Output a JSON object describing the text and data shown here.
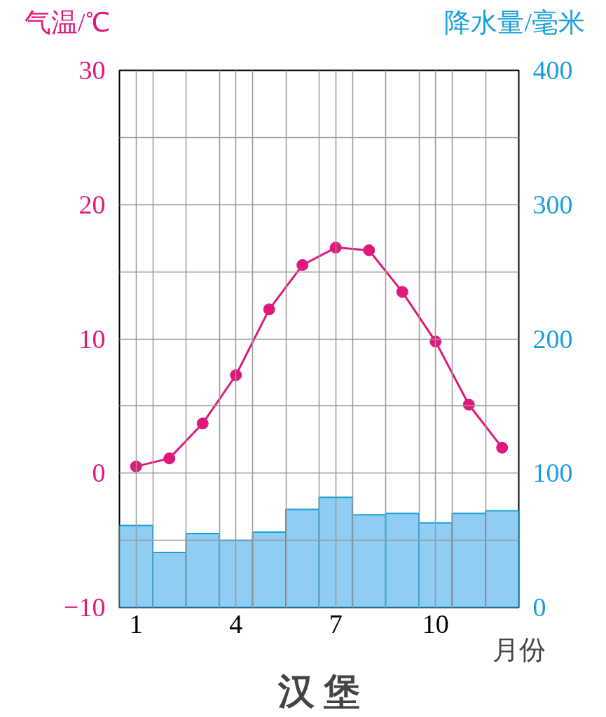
{
  "chart_data": {
    "type": "line",
    "title": "汉 堡",
    "xlabel": "月份",
    "ylabel": "气温/℃",
    "y2label": "降水量/毫米",
    "x": [
      1,
      2,
      3,
      4,
      5,
      6,
      7,
      8,
      9,
      10,
      11,
      12
    ],
    "xlim": [
      0.5,
      12.5
    ],
    "xticks": [
      1,
      4,
      7,
      10,
      {
        "value": 1.5,
        "label": null
      },
      {
        "value": 2.5,
        "label": null
      },
      {
        "value": 3.5,
        "label": null
      },
      {
        "value": 4.5,
        "label": null
      },
      {
        "value": 5.5,
        "label": null
      },
      {
        "value": 6.5,
        "label": null
      },
      {
        "value": 7.5,
        "label": null
      },
      {
        "value": 8.5,
        "label": null
      },
      {
        "value": 9.5,
        "label": null
      },
      {
        "value": 10.5,
        "label": null
      },
      {
        "value": 11.5,
        "label": null
      }
    ],
    "ylim": [
      -10,
      30
    ],
    "yticks": [
      {
        "value": -10,
        "label": "−10"
      },
      0,
      10,
      20,
      30,
      {
        "value": -5,
        "label": null
      },
      {
        "value": 5,
        "label": null
      },
      {
        "value": 15,
        "label": null
      },
      {
        "value": 25,
        "label": null
      }
    ],
    "y2lim": [
      0,
      400
    ],
    "y2ticks": [
      0,
      100,
      200,
      300,
      400
    ],
    "grid": true,
    "marker": "circle",
    "series": [
      {
        "type": "bar",
        "axis": "y2",
        "color": "#8fcdf2",
        "values": [
          61,
          41,
          55,
          50,
          56,
          73,
          82,
          69,
          70,
          63,
          70,
          72
        ]
      },
      {
        "axis": "y",
        "color": "#e0187c",
        "values": [
          0.5,
          1.1,
          3.7,
          7.3,
          12.2,
          15.5,
          16.8,
          16.6,
          13.5,
          9.8,
          5.1,
          1.9
        ]
      }
    ]
  }
}
